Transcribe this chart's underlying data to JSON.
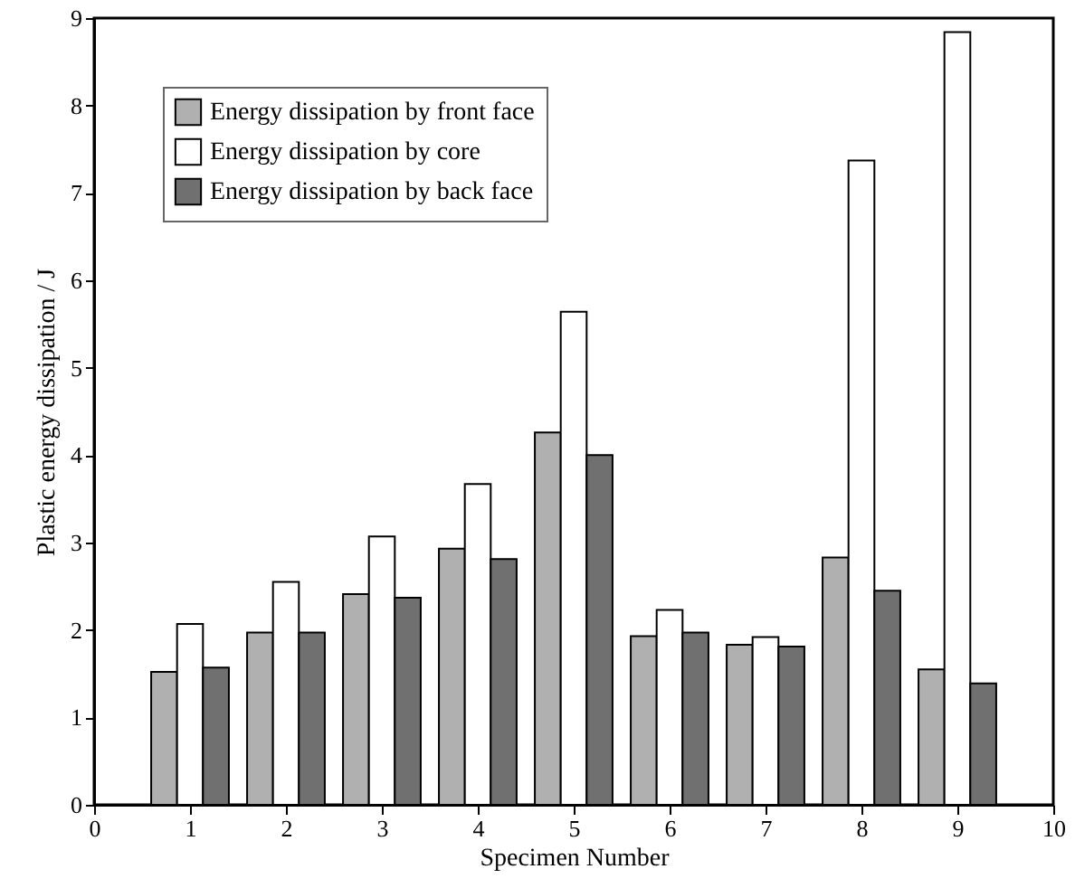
{
  "chart_data": {
    "type": "bar",
    "xlabel": "Specimen Number",
    "ylabel": "Plastic energy dissipation / J",
    "x": [
      1,
      2,
      3,
      4,
      5,
      6,
      7,
      8,
      9
    ],
    "series": [
      {
        "name": "Energy dissipation by front face",
        "color": "#b0b0b0",
        "values": [
          1.52,
          1.97,
          2.41,
          2.93,
          4.26,
          1.93,
          1.83,
          2.83,
          1.55
        ]
      },
      {
        "name": "Energy dissipation by core",
        "color": "#ffffff",
        "values": [
          2.07,
          2.55,
          3.07,
          3.67,
          5.64,
          2.23,
          1.92,
          7.37,
          8.84
        ]
      },
      {
        "name": "Energy dissipation by back face",
        "color": "#707070",
        "values": [
          1.57,
          1.97,
          2.37,
          2.81,
          4.0,
          1.97,
          1.81,
          2.45,
          1.39
        ]
      }
    ],
    "xlim": [
      0,
      10
    ],
    "xticks": [
      0,
      1,
      2,
      3,
      4,
      5,
      6,
      7,
      8,
      9,
      10
    ],
    "ylim": [
      0,
      9
    ],
    "yticks": [
      0,
      1,
      2,
      3,
      4,
      5,
      6,
      7,
      8,
      9
    ],
    "legend": "top left",
    "grid": false
  }
}
